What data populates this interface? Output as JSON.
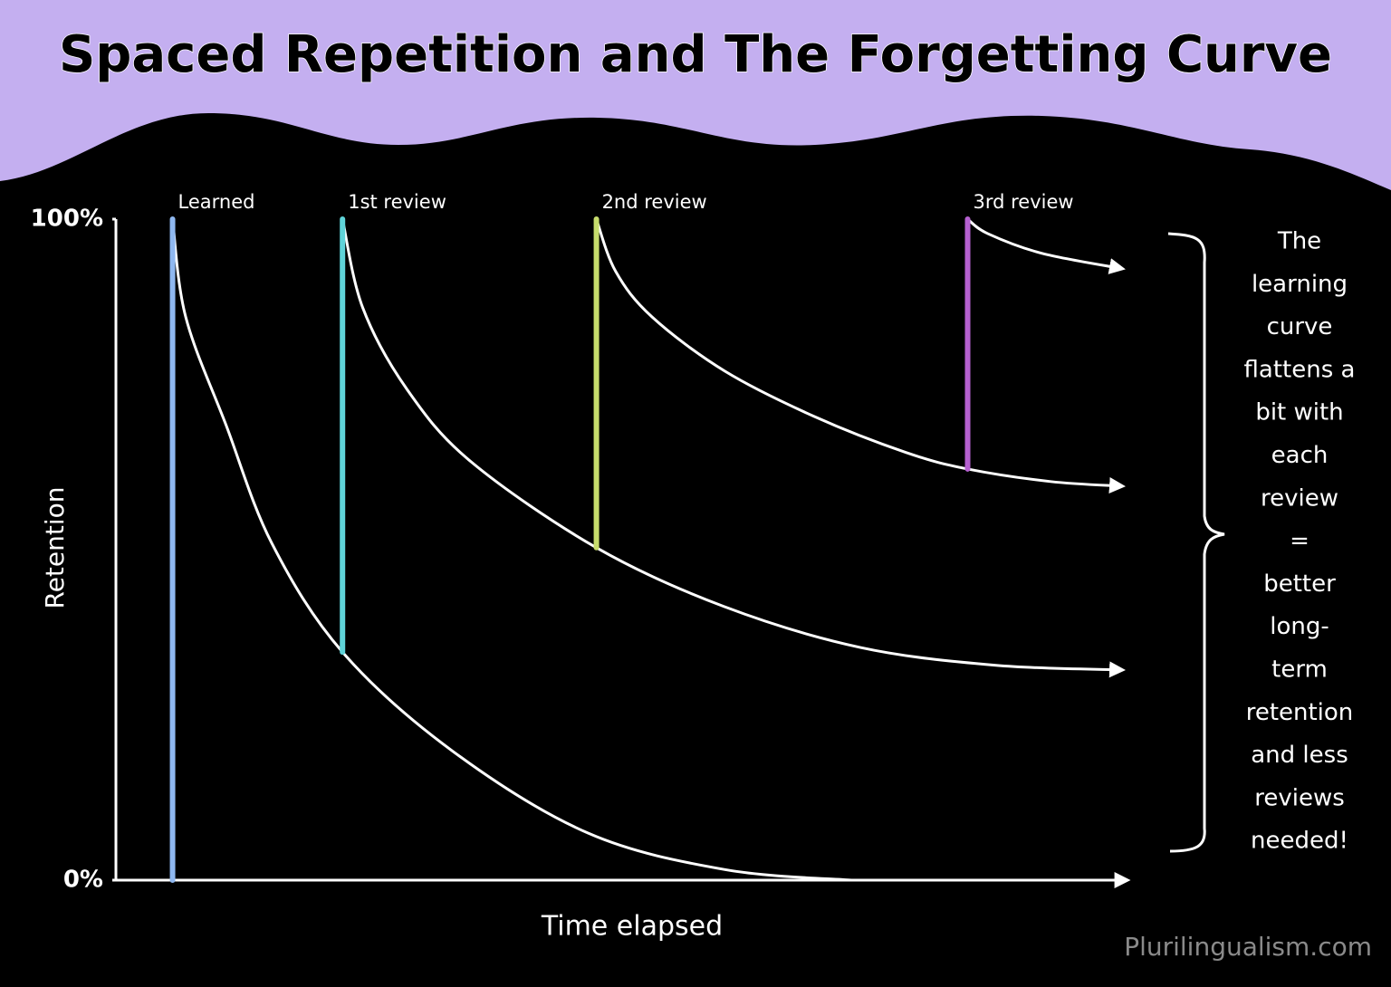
{
  "chart_data": {
    "type": "line",
    "title": "Spaced Repetition and The Forgetting Curve",
    "xlabel": "Time elapsed",
    "ylabel": "Retention",
    "xlim": [
      0,
      100
    ],
    "ylim": [
      0,
      100
    ],
    "yticks": [
      {
        "value": 0,
        "label": "0%"
      },
      {
        "value": 100,
        "label": "100%"
      }
    ],
    "markers": [
      {
        "label": "Learned",
        "x": 5.6,
        "low": 0,
        "high": 100,
        "color": "#8fb8f0"
      },
      {
        "label": "1st review",
        "x": 22.4,
        "low": 34.5,
        "high": 100,
        "color": "#5fd3d8"
      },
      {
        "label": "2nd review",
        "x": 47.5,
        "low": 50.3,
        "high": 100,
        "color": "#c6dc6c"
      },
      {
        "label": "3rd review",
        "x": 84.2,
        "low": 62.2,
        "high": 100,
        "color": "#b560d0"
      }
    ],
    "series": [
      {
        "color": "#ffffff",
        "arrow": false,
        "x": [
          5.6,
          6.9,
          10.9,
          15.4,
          22.4,
          33.3,
          46.7,
          60.2,
          72.7
        ],
        "values": [
          100,
          85.2,
          68.8,
          51.0,
          34.5,
          19.5,
          7.1,
          1.6,
          0
        ]
      },
      {
        "color": "#ffffff",
        "arrow": true,
        "x": [
          22.4,
          24.4,
          28.8,
          35.1,
          47.5,
          60.1,
          73.6,
          87.0,
          99.5
        ],
        "values": [
          100,
          86.6,
          74.2,
          63.3,
          50.3,
          41.4,
          35.2,
          32.5,
          31.8
        ]
      },
      {
        "color": "#ffffff",
        "arrow": true,
        "x": [
          47.5,
          49.4,
          53.0,
          60.2,
          69.1,
          78.1,
          84.2,
          92.4,
          99.5
        ],
        "values": [
          100,
          92.1,
          85.2,
          77.0,
          70.1,
          64.7,
          62.2,
          60.3,
          59.6
        ]
      },
      {
        "color": "#ffffff",
        "arrow": true,
        "x": [
          84.2,
          86.2,
          91.6,
          99.5
        ],
        "values": [
          100,
          97.8,
          94.8,
          92.5
        ]
      }
    ],
    "annotation": [
      "The",
      "learning",
      "curve",
      "flattens a",
      "bit with",
      "each",
      "review",
      "=",
      "better",
      "long-",
      "term",
      "retention",
      "and less",
      "reviews",
      "needed!"
    ],
    "watermark": "Plurilingualism.com"
  }
}
